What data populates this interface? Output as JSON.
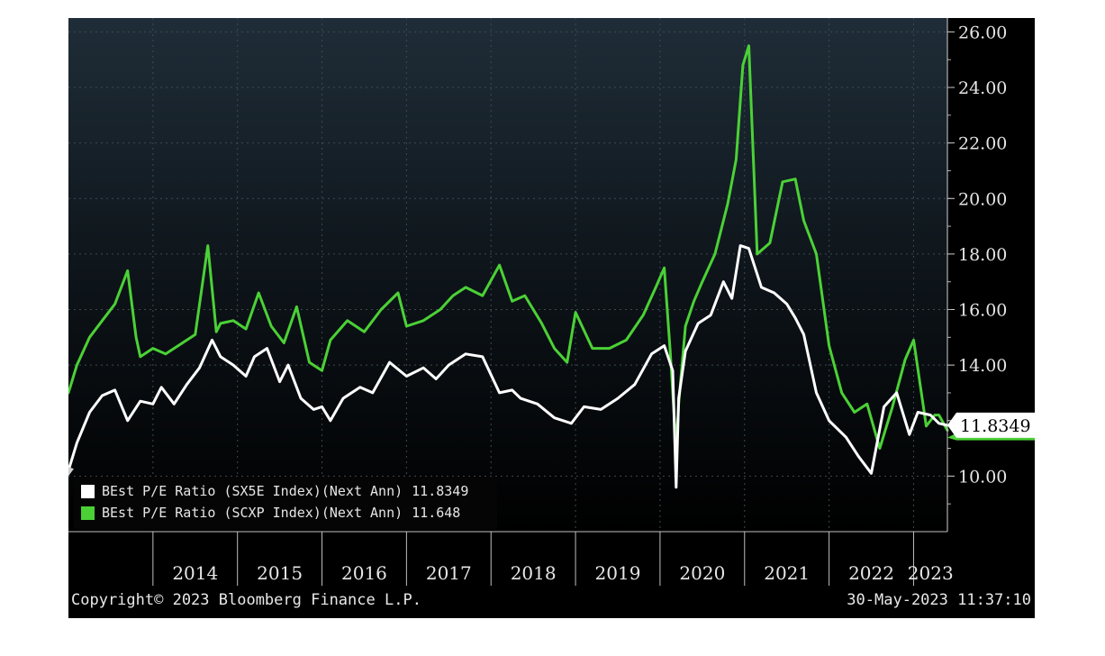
{
  "chart_data": {
    "type": "line",
    "ylim": [
      8,
      26.5
    ],
    "y_ticks": [
      "10.00",
      "14.00",
      "16.00",
      "18.00",
      "20.00",
      "22.00",
      "24.00",
      "26.00"
    ],
    "x_range": [
      2013.0,
      2023.4
    ],
    "x_ticks": [
      "2014",
      "2015",
      "2016",
      "2017",
      "2018",
      "2019",
      "2020",
      "2021",
      "2022",
      "2023"
    ],
    "grid": true,
    "legend_position": "bottom-left",
    "series": [
      {
        "name": "BEst P/E Ratio (SX5E Index)(Next Ann)",
        "last_value": "11.8349",
        "color": "#ffffff",
        "x": [
          2013.0,
          2013.1,
          2013.25,
          2013.4,
          2013.55,
          2013.7,
          2013.85,
          2014.0,
          2014.1,
          2014.25,
          2014.4,
          2014.55,
          2014.7,
          2014.8,
          2014.95,
          2015.1,
          2015.2,
          2015.35,
          2015.5,
          2015.6,
          2015.75,
          2015.9,
          2016.0,
          2016.1,
          2016.25,
          2016.45,
          2016.6,
          2016.8,
          2017.0,
          2017.2,
          2017.35,
          2017.5,
          2017.7,
          2017.9,
          2018.1,
          2018.25,
          2018.35,
          2018.55,
          2018.75,
          2018.95,
          2019.1,
          2019.3,
          2019.5,
          2019.7,
          2019.9,
          2020.05,
          2020.15,
          2020.19,
          2020.22,
          2020.3,
          2020.45,
          2020.6,
          2020.75,
          2020.85,
          2020.95,
          2021.05,
          2021.2,
          2021.35,
          2021.5,
          2021.6,
          2021.7,
          2021.85,
          2022.0,
          2022.2,
          2022.35,
          2022.5,
          2022.65,
          2022.8,
          2022.95,
          2023.05,
          2023.2,
          2023.3,
          2023.4
        ],
        "y": [
          10.2,
          11.2,
          12.3,
          12.9,
          13.1,
          12.0,
          12.7,
          12.6,
          13.2,
          12.6,
          13.3,
          13.9,
          14.9,
          14.3,
          14.0,
          13.6,
          14.3,
          14.6,
          13.4,
          14.0,
          12.8,
          12.4,
          12.5,
          12.0,
          12.8,
          13.2,
          13.0,
          14.1,
          13.6,
          13.9,
          13.5,
          14.0,
          14.4,
          14.3,
          13.0,
          13.1,
          12.8,
          12.6,
          12.1,
          11.9,
          12.5,
          12.4,
          12.8,
          13.3,
          14.4,
          14.7,
          13.8,
          9.6,
          12.8,
          14.5,
          15.5,
          15.8,
          17.0,
          16.4,
          18.3,
          18.2,
          16.8,
          16.6,
          16.2,
          15.7,
          15.1,
          13.0,
          12.0,
          11.4,
          10.7,
          10.1,
          12.5,
          13.0,
          11.5,
          12.3,
          12.2,
          11.9,
          11.83
        ]
      },
      {
        "name": "BEst P/E Ratio (SCXP Index)(Next Ann)",
        "last_value": "11.648",
        "color": "#4bd136",
        "x": [
          2013.0,
          2013.1,
          2013.25,
          2013.4,
          2013.55,
          2013.7,
          2013.8,
          2013.85,
          2014.0,
          2014.15,
          2014.35,
          2014.5,
          2014.65,
          2014.75,
          2014.8,
          2014.95,
          2015.1,
          2015.25,
          2015.4,
          2015.55,
          2015.7,
          2015.85,
          2016.0,
          2016.1,
          2016.3,
          2016.5,
          2016.7,
          2016.9,
          2017.0,
          2017.2,
          2017.4,
          2017.55,
          2017.7,
          2017.9,
          2018.1,
          2018.25,
          2018.4,
          2018.6,
          2018.75,
          2018.9,
          2019.0,
          2019.2,
          2019.4,
          2019.6,
          2019.8,
          2019.95,
          2020.05,
          2020.12,
          2020.19,
          2020.22,
          2020.3,
          2020.4,
          2020.5,
          2020.65,
          2020.8,
          2020.9,
          2020.98,
          2021.05,
          2021.15,
          2021.3,
          2021.45,
          2021.6,
          2021.7,
          2021.85,
          2022.0,
          2022.15,
          2022.3,
          2022.45,
          2022.6,
          2022.75,
          2022.9,
          2023.0,
          2023.15,
          2023.25,
          2023.3,
          2023.4
        ],
        "y": [
          13.0,
          14.0,
          15.0,
          15.6,
          16.2,
          17.4,
          15.0,
          14.3,
          14.6,
          14.4,
          14.8,
          15.1,
          18.3,
          15.2,
          15.5,
          15.6,
          15.3,
          16.6,
          15.4,
          14.8,
          16.1,
          14.1,
          13.8,
          14.9,
          15.6,
          15.2,
          16.0,
          16.6,
          15.4,
          15.6,
          16.0,
          16.5,
          16.8,
          16.5,
          17.6,
          16.3,
          16.5,
          15.5,
          14.6,
          14.1,
          15.9,
          14.6,
          14.6,
          14.9,
          15.8,
          16.8,
          17.5,
          14.5,
          11.0,
          12.6,
          15.4,
          16.3,
          17.0,
          18.0,
          19.8,
          21.4,
          24.8,
          25.5,
          18.0,
          18.4,
          20.6,
          20.7,
          19.2,
          18.0,
          14.7,
          13.0,
          12.3,
          12.6,
          11.0,
          12.5,
          14.2,
          14.9,
          11.8,
          12.2,
          12.2,
          11.65
        ]
      }
    ]
  },
  "legend": {
    "rows": [
      {
        "label": "BEst P/E Ratio (SX5E Index)(Next Ann)",
        "value": "11.8349",
        "color": "#ffffff"
      },
      {
        "label": "BEst P/E Ratio (SCXP Index)(Next Ann)",
        "value": "11.648",
        "color": "#4bd136"
      }
    ]
  },
  "last_value_flag": {
    "text": "11.8349"
  },
  "footer": {
    "copyright": "Copyright© 2023 Bloomberg Finance L.P.",
    "timestamp": "30-May-2023 11:37:10"
  },
  "colors": {
    "background_top": "#1d2a35",
    "background_bottom": "#000000",
    "grid": "#4a5560",
    "green": "#4bd136",
    "white": "#ffffff"
  }
}
